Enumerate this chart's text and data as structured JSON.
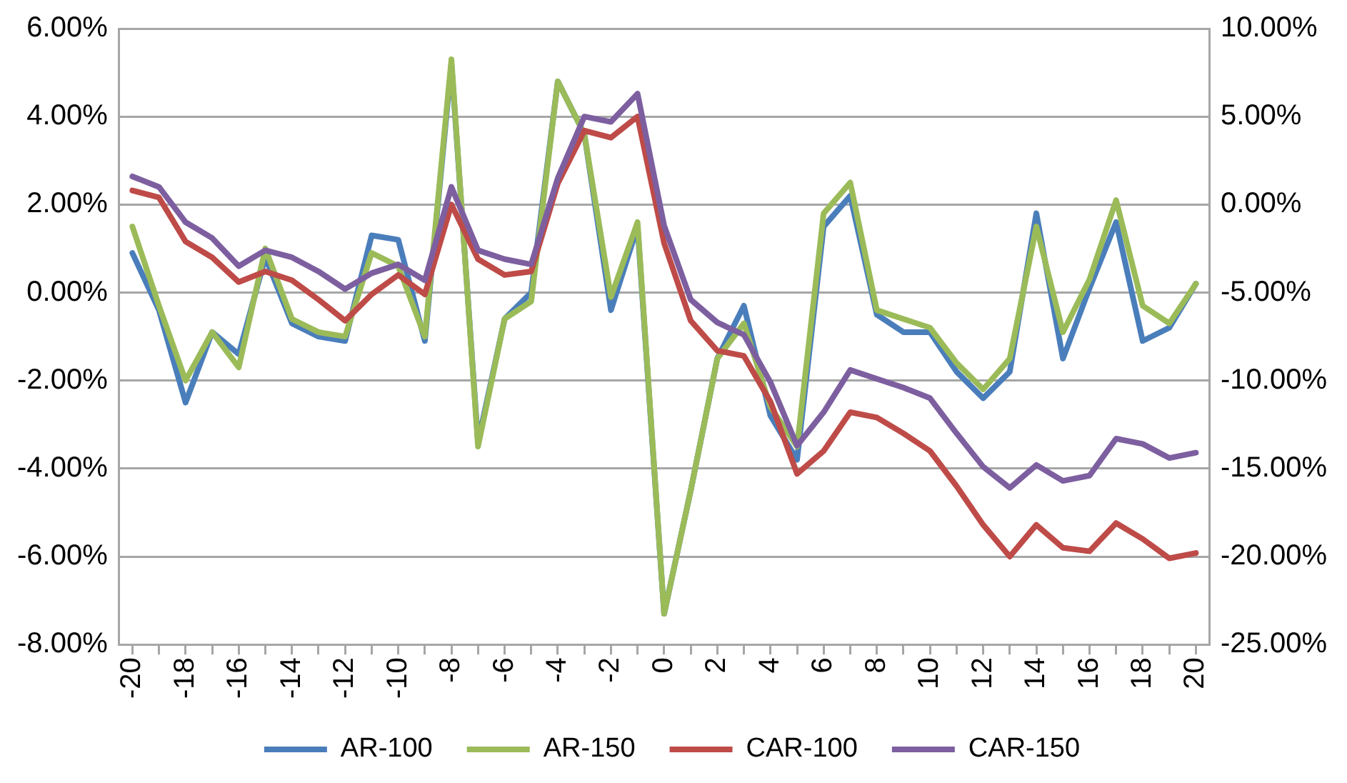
{
  "chart_data": {
    "type": "line",
    "categories": [
      "-20",
      null,
      "-18",
      null,
      "-16",
      null,
      "-14",
      null,
      "-12",
      null,
      "-10",
      null,
      "-8",
      null,
      "-6",
      null,
      "-4",
      null,
      "-2",
      null,
      "0",
      null,
      "2",
      null,
      "4",
      null,
      "6",
      null,
      "8",
      null,
      "10",
      null,
      "12",
      null,
      "14",
      null,
      "16",
      null,
      "18",
      null,
      "20"
    ],
    "series": [
      {
        "name": "AR-100",
        "color": "#4a7ebb",
        "values": [
          0.9,
          -0.4,
          -2.5,
          -0.9,
          -1.4,
          0.8,
          -0.7,
          -1.0,
          -1.1,
          1.3,
          1.2,
          -1.1,
          5.2,
          -3.4,
          -0.6,
          0.0,
          4.8,
          3.6,
          -0.4,
          1.5,
          -7.3,
          -4.5,
          -1.5,
          -0.3,
          -2.8,
          -3.8,
          1.5,
          2.2,
          -0.5,
          -0.9,
          -0.9,
          -1.8,
          -2.4,
          -1.8,
          1.8,
          -1.5,
          0.1,
          1.6,
          -1.1,
          -0.8,
          0.2
        ]
      },
      {
        "name": "AR-150",
        "color": "#9bbb59",
        "values": [
          1.5,
          -0.3,
          -2.0,
          -0.9,
          -1.7,
          1.0,
          -0.6,
          -0.9,
          -1.0,
          0.9,
          0.6,
          -1.0,
          5.3,
          -3.5,
          -0.6,
          -0.2,
          4.8,
          3.6,
          -0.1,
          1.6,
          -7.3,
          -4.5,
          -1.5,
          -0.7,
          -2.6,
          -3.5,
          1.8,
          2.5,
          -0.4,
          -0.6,
          -0.8,
          -1.6,
          -2.2,
          -1.5,
          1.5,
          -0.9,
          0.3,
          2.1,
          -0.3,
          -0.7,
          0.2
        ]
      },
      {
        "name": "CAR-100",
        "color": "#be4b48",
        "axis": "y2",
        "values": [
          0.8,
          0.4,
          -2.1,
          -3.0,
          -4.4,
          -3.8,
          -4.3,
          -5.4,
          -6.6,
          -5.1,
          -4.0,
          -5.1,
          0.0,
          -3.1,
          -4.0,
          -3.8,
          1.2,
          4.2,
          3.8,
          5.0,
          -2.2,
          -6.6,
          -8.3,
          -8.6,
          -11.2,
          -15.3,
          -14.0,
          -11.8,
          -12.1,
          -13.0,
          -14.0,
          -16.0,
          -18.2,
          -20.0,
          -18.2,
          -19.5,
          -19.7,
          -18.1,
          -19.0,
          -20.1,
          -19.8
        ]
      },
      {
        "name": "CAR-150",
        "color": "#7d5fa0",
        "axis": "y2",
        "values": [
          1.6,
          1.0,
          -1.0,
          -1.9,
          -3.5,
          -2.6,
          -3.0,
          -3.8,
          -4.8,
          -3.9,
          -3.4,
          -4.3,
          1.0,
          -2.6,
          -3.1,
          -3.4,
          1.5,
          5.0,
          4.7,
          6.3,
          -1.2,
          -5.4,
          -6.7,
          -7.4,
          -10.1,
          -13.7,
          -11.8,
          -9.4,
          -9.9,
          -10.4,
          -11.0,
          -13.0,
          -14.9,
          -16.1,
          -14.8,
          -15.7,
          -15.4,
          -13.3,
          -13.6,
          -14.4,
          -14.1
        ]
      }
    ],
    "ylim": [
      -8,
      6
    ],
    "yticks": [
      {
        "value": -8,
        "label": "-8.00%"
      },
      {
        "value": -6,
        "label": "-6.00%"
      },
      {
        "value": -4,
        "label": "-4.00%"
      },
      {
        "value": -2,
        "label": "-2.00%"
      },
      {
        "value": 0,
        "label": "0.00%"
      },
      {
        "value": 2,
        "label": "2.00%"
      },
      {
        "value": 4,
        "label": "4.00%"
      },
      {
        "value": 6,
        "label": "6.00%"
      }
    ],
    "y2lim": [
      -25,
      10
    ],
    "y2ticks": [
      {
        "value": -25,
        "label": "-25.00%"
      },
      {
        "value": -20,
        "label": "-20.00%"
      },
      {
        "value": -15,
        "label": "-15.00%"
      },
      {
        "value": -10,
        "label": "-10.00%"
      },
      {
        "value": -5,
        "label": "-5.00%"
      },
      {
        "value": 0,
        "label": "0.00%"
      },
      {
        "value": 5,
        "label": "5.00%"
      },
      {
        "value": 10,
        "label": "10.00%"
      }
    ],
    "grid": "y",
    "legend": "bottom",
    "marker": "none",
    "line_style": "solid"
  }
}
